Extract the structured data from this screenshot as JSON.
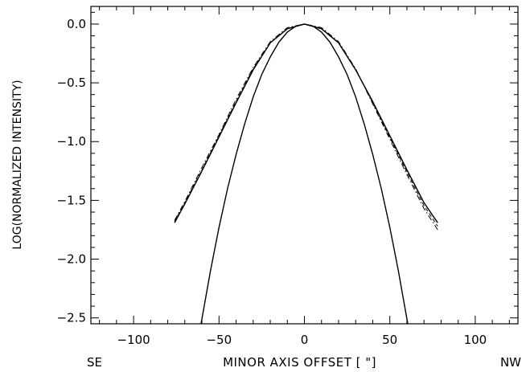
{
  "chart_data": {
    "type": "line",
    "title": "",
    "xlabel": "MINOR AXIS OFFSET [ \"]",
    "ylabel": "LOG(NORMALIZED INTENSITY)",
    "xlabel_left": "SE",
    "xlabel_right": "NW",
    "xlim": [
      -125,
      125
    ],
    "ylim": [
      -2.55,
      0.15
    ],
    "x_ticks": [
      -100,
      -50,
      0,
      50,
      100
    ],
    "x_tick_labels": [
      "−100",
      "−50",
      "0",
      "50",
      "100"
    ],
    "y_ticks": [
      0.0,
      -0.5,
      -1.0,
      -1.5,
      -2.0,
      -2.5
    ],
    "y_tick_labels": [
      "0.0",
      "−0.5",
      "−1.0",
      "−1.5",
      "−2.0",
      "−2.5"
    ],
    "grid": false,
    "series": [
      {
        "style": "solid",
        "x": [
          -76,
          -70,
          -60,
          -50,
          -40,
          -30,
          -20,
          -10,
          0,
          10,
          20,
          30,
          40,
          50,
          60,
          70,
          78
        ],
        "y": [
          -1.69,
          -1.53,
          -1.25,
          -0.96,
          -0.67,
          -0.39,
          -0.16,
          -0.04,
          0.0,
          -0.04,
          -0.16,
          -0.39,
          -0.66,
          -0.95,
          -1.24,
          -1.52,
          -1.69
        ]
      },
      {
        "style": "dashdot",
        "x": [
          -76,
          -70,
          -60,
          -50,
          -40,
          -30,
          -20,
          -10,
          0,
          10,
          20,
          30,
          40,
          50,
          60,
          70,
          78
        ],
        "y": [
          -1.67,
          -1.51,
          -1.22,
          -0.94,
          -0.64,
          -0.37,
          -0.15,
          -0.03,
          0.0,
          -0.03,
          -0.15,
          -0.38,
          -0.68,
          -0.98,
          -1.28,
          -1.57,
          -1.75
        ]
      },
      {
        "style": "dashed",
        "x": [
          -76,
          -70,
          -60,
          -50,
          -40,
          -30,
          -20,
          -10,
          0,
          10,
          20,
          30,
          40,
          50,
          60,
          70,
          78
        ],
        "y": [
          -1.68,
          -1.52,
          -1.24,
          -0.95,
          -0.66,
          -0.38,
          -0.16,
          -0.04,
          0.0,
          -0.04,
          -0.16,
          -0.385,
          -0.67,
          -0.965,
          -1.26,
          -1.545,
          -1.72
        ]
      },
      {
        "style": "solid",
        "x": [
          -61,
          -55,
          -50,
          -45,
          -40,
          -35,
          -30,
          -25,
          -20,
          -15,
          -10,
          -5,
          0,
          5,
          10,
          15,
          20,
          25,
          30,
          35,
          40,
          45,
          50,
          55,
          61
        ],
        "y": [
          -2.59,
          -2.1,
          -1.73,
          -1.4,
          -1.11,
          -0.85,
          -0.62,
          -0.43,
          -0.28,
          -0.155,
          -0.068,
          -0.017,
          0.0,
          -0.017,
          -0.068,
          -0.155,
          -0.28,
          -0.43,
          -0.62,
          -0.85,
          -1.11,
          -1.4,
          -1.73,
          -2.1,
          -2.59
        ]
      }
    ]
  }
}
